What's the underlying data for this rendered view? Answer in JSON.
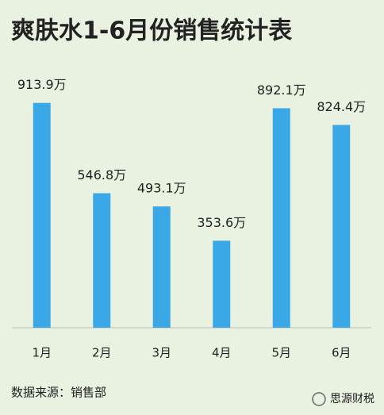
{
  "chart_data": {
    "type": "bar",
    "title": "爽肤水1-6月份销售统计表",
    "categories": [
      "1月",
      "2月",
      "3月",
      "4月",
      "5月",
      "6月"
    ],
    "values": [
      913.9,
      546.8,
      493.1,
      353.6,
      892.1,
      824.4
    ],
    "value_labels": [
      "913.9万",
      "546.8万",
      "493.1万",
      "353.6万",
      "892.1万",
      "824.4万"
    ],
    "color": "#3aa7e6",
    "ylim": [
      0,
      1000
    ],
    "source": "数据来源：销售部",
    "watermark": "思源财税"
  }
}
